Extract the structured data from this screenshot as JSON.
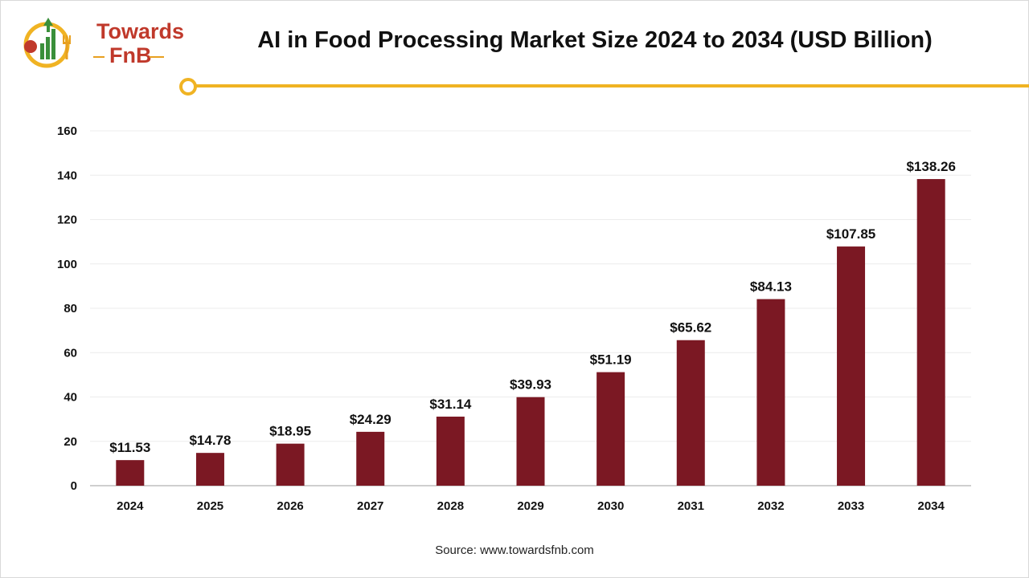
{
  "logo": {
    "line1": "Towards",
    "line2": "FnB"
  },
  "colors": {
    "bar": "#7b1823",
    "accent": "#f0b323",
    "logo_red": "#c0392b",
    "logo_green": "#3a8f3a"
  },
  "icons": [
    "chart-bars-icon",
    "fork-icon"
  ],
  "chart_data": {
    "type": "bar",
    "title": "AI in Food Processing Market Size 2024 to 2034 (USD Billion)",
    "categories": [
      "2024",
      "2025",
      "2026",
      "2027",
      "2028",
      "2029",
      "2030",
      "2031",
      "2032",
      "2033",
      "2034"
    ],
    "values": [
      11.53,
      14.78,
      18.95,
      24.29,
      31.14,
      39.93,
      51.19,
      65.62,
      84.13,
      107.85,
      138.26
    ],
    "data_labels": [
      "$11.53",
      "$14.78",
      "$18.95",
      "$24.29",
      "$31.14",
      "$39.93",
      "$51.19",
      "$65.62",
      "$84.13",
      "$107.85",
      "$138.26"
    ],
    "yticks": [
      "0",
      "20",
      "40",
      "60",
      "80",
      "100",
      "120",
      "140",
      "160"
    ],
    "ylim": [
      0,
      160
    ],
    "xlabel": "",
    "ylabel": "",
    "grid": true,
    "legend": "none"
  },
  "source": "Source: www.towardsfnb.com"
}
